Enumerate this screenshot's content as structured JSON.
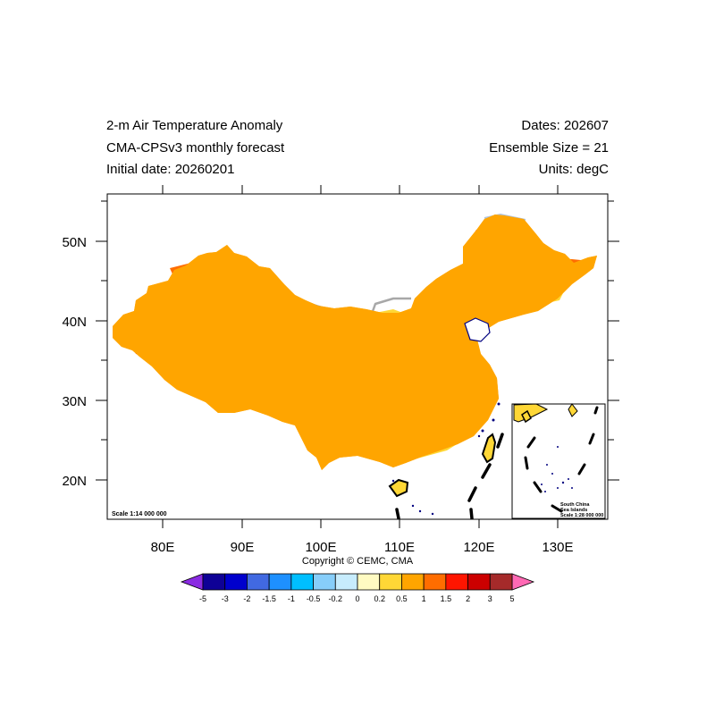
{
  "header": {
    "left": [
      "2-m Air Temperature Anomaly",
      "CMA-CPSv3 monthly forecast",
      "Initial date: 20260201"
    ],
    "right": [
      "Dates: 202607",
      "Ensemble Size = 21",
      "Units: degC"
    ]
  },
  "axes": {
    "x_labels": [
      "80E",
      "90E",
      "100E",
      "110E",
      "120E",
      "130E"
    ],
    "y_labels": [
      "50N",
      "40N",
      "30N",
      "20N"
    ],
    "lon_range": [
      73,
      135
    ],
    "lat_range": [
      15,
      56
    ]
  },
  "scale_main": "Scale 1:14 000 000",
  "inset": {
    "title_line1": "South China",
    "title_line2": "Sea Islands",
    "scale": "Scale 1:28 000 000"
  },
  "copyright": "Copyright © CEMC, CMA",
  "colorbar": {
    "labels": [
      "-5",
      "-3",
      "-2",
      "-1.5",
      "-1",
      "-0.5",
      "-0.2",
      "0",
      "0.2",
      "0.5",
      "1",
      "1.5",
      "2",
      "3",
      "5"
    ],
    "colors": [
      "#0e0196",
      "#0000cd",
      "#4169e1",
      "#1e90ff",
      "#00bfff",
      "#87cefa",
      "#c7ecfd",
      "#fffbc2",
      "#ffd736",
      "#ffa500",
      "#ff6d00",
      "#ff1500",
      "#cc0000",
      "#a52a2a"
    ],
    "low_color": "#8a2be2",
    "high_color": "#ff69b4"
  },
  "colors": {
    "border": "#000000",
    "province_lines": "#a8a8a8",
    "rivers": "#b0c4de",
    "coastline": "#000080"
  }
}
